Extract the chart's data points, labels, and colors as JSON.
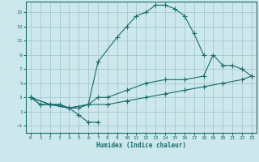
{
  "xlabel": "Humidex (Indice chaleur)",
  "bg_color": "#cce8ec",
  "grid_color": "#9dc4c8",
  "line_color": "#1a6b6b",
  "xlim": [
    -0.5,
    23.5
  ],
  "ylim": [
    -2,
    16.5
  ],
  "xticks": [
    0,
    1,
    2,
    3,
    4,
    5,
    6,
    7,
    8,
    9,
    10,
    11,
    12,
    13,
    14,
    15,
    16,
    17,
    18,
    19,
    20,
    21,
    22,
    23
  ],
  "yticks": [
    -1,
    1,
    3,
    5,
    7,
    9,
    11,
    13,
    15
  ],
  "curve_main_x": [
    0,
    1,
    2,
    3,
    4,
    5,
    6,
    7,
    9,
    10,
    11,
    12,
    13,
    14,
    15,
    16,
    17,
    18
  ],
  "curve_main_y": [
    3.0,
    2.0,
    2.0,
    2.0,
    1.5,
    1.5,
    2.0,
    8.0,
    11.5,
    13.0,
    14.5,
    15.0,
    16.0,
    16.0,
    15.5,
    14.5,
    12.0,
    9.0
  ],
  "curve_dip_x": [
    0,
    1,
    2,
    3,
    4,
    5,
    6,
    7
  ],
  "curve_dip_y": [
    3.0,
    2.0,
    2.0,
    2.0,
    1.5,
    0.5,
    -0.5,
    -0.5
  ],
  "curve_upper_x": [
    0,
    2,
    4,
    6,
    7,
    8,
    10,
    12,
    14,
    16,
    18,
    19,
    20,
    21,
    22,
    23
  ],
  "curve_upper_y": [
    3.0,
    2.0,
    1.5,
    2.0,
    3.0,
    3.0,
    4.0,
    5.0,
    5.5,
    5.5,
    6.0,
    9.0,
    7.5,
    7.5,
    7.0,
    6.0
  ],
  "curve_lower_x": [
    0,
    2,
    4,
    6,
    8,
    10,
    12,
    14,
    16,
    18,
    20,
    22,
    23
  ],
  "curve_lower_y": [
    3.0,
    2.0,
    1.5,
    2.0,
    2.0,
    2.5,
    3.0,
    3.5,
    4.0,
    4.5,
    5.0,
    5.5,
    6.0
  ]
}
